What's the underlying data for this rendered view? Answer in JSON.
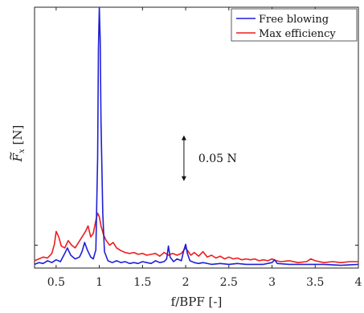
{
  "chart_data": {
    "type": "line",
    "xlabel": "f/BPF [-]",
    "ylabel_main": "F",
    "ylabel_sub": "x",
    "ylabel_unit": "[N]",
    "xlim": [
      0.25,
      4.0
    ],
    "xticks": [
      0.5,
      1,
      1.5,
      2,
      2.5,
      3,
      3.5,
      4
    ],
    "xtick_labels": [
      "0.5",
      "1",
      "1.5",
      "2",
      "2.5",
      "3",
      "3.5",
      "4"
    ],
    "ylim": [
      0,
      0.285
    ],
    "yticks": [
      0.025
    ],
    "grid": false,
    "legend_position": "top-right",
    "annotation": {
      "text": "0.05 N",
      "x": 1.98,
      "y_from": 0.095,
      "y_to": 0.145
    },
    "series": [
      {
        "name": "Free blowing",
        "color": "#1f1fd6",
        "points": [
          [
            0.25,
            0.004
          ],
          [
            0.3,
            0.006
          ],
          [
            0.35,
            0.005
          ],
          [
            0.4,
            0.008
          ],
          [
            0.45,
            0.006
          ],
          [
            0.5,
            0.009
          ],
          [
            0.55,
            0.007
          ],
          [
            0.6,
            0.016
          ],
          [
            0.63,
            0.022
          ],
          [
            0.67,
            0.014
          ],
          [
            0.72,
            0.01
          ],
          [
            0.77,
            0.012
          ],
          [
            0.8,
            0.018
          ],
          [
            0.83,
            0.028
          ],
          [
            0.86,
            0.02
          ],
          [
            0.9,
            0.012
          ],
          [
            0.93,
            0.01
          ],
          [
            0.96,
            0.02
          ],
          [
            0.98,
            0.12
          ],
          [
            0.99,
            0.24
          ],
          [
            1.0,
            0.285
          ],
          [
            1.01,
            0.25
          ],
          [
            1.02,
            0.16
          ],
          [
            1.04,
            0.06
          ],
          [
            1.06,
            0.018
          ],
          [
            1.1,
            0.008
          ],
          [
            1.15,
            0.006
          ],
          [
            1.2,
            0.008
          ],
          [
            1.25,
            0.006
          ],
          [
            1.3,
            0.007
          ],
          [
            1.35,
            0.005
          ],
          [
            1.4,
            0.006
          ],
          [
            1.45,
            0.005
          ],
          [
            1.5,
            0.007
          ],
          [
            1.55,
            0.006
          ],
          [
            1.6,
            0.005
          ],
          [
            1.65,
            0.008
          ],
          [
            1.7,
            0.006
          ],
          [
            1.75,
            0.007
          ],
          [
            1.78,
            0.01
          ],
          [
            1.8,
            0.024
          ],
          [
            1.82,
            0.012
          ],
          [
            1.86,
            0.007
          ],
          [
            1.9,
            0.01
          ],
          [
            1.95,
            0.008
          ],
          [
            1.98,
            0.02
          ],
          [
            2.0,
            0.026
          ],
          [
            2.02,
            0.016
          ],
          [
            2.05,
            0.008
          ],
          [
            2.1,
            0.006
          ],
          [
            2.15,
            0.005
          ],
          [
            2.2,
            0.006
          ],
          [
            2.3,
            0.004
          ],
          [
            2.4,
            0.005
          ],
          [
            2.5,
            0.004
          ],
          [
            2.6,
            0.005
          ],
          [
            2.7,
            0.004
          ],
          [
            2.8,
            0.004
          ],
          [
            2.9,
            0.004
          ],
          [
            3.0,
            0.006
          ],
          [
            3.03,
            0.009
          ],
          [
            3.06,
            0.005
          ],
          [
            3.2,
            0.004
          ],
          [
            3.4,
            0.004
          ],
          [
            3.5,
            0.004
          ],
          [
            3.6,
            0.004
          ],
          [
            3.8,
            0.003
          ],
          [
            4.0,
            0.004
          ]
        ]
      },
      {
        "name": "Max efficiency",
        "color": "#ee1c1c",
        "points": [
          [
            0.25,
            0.008
          ],
          [
            0.3,
            0.01
          ],
          [
            0.35,
            0.012
          ],
          [
            0.4,
            0.011
          ],
          [
            0.45,
            0.016
          ],
          [
            0.48,
            0.026
          ],
          [
            0.5,
            0.04
          ],
          [
            0.53,
            0.034
          ],
          [
            0.56,
            0.024
          ],
          [
            0.6,
            0.022
          ],
          [
            0.64,
            0.03
          ],
          [
            0.68,
            0.025
          ],
          [
            0.72,
            0.022
          ],
          [
            0.76,
            0.028
          ],
          [
            0.8,
            0.034
          ],
          [
            0.84,
            0.04
          ],
          [
            0.87,
            0.046
          ],
          [
            0.9,
            0.034
          ],
          [
            0.93,
            0.038
          ],
          [
            0.96,
            0.052
          ],
          [
            0.98,
            0.06
          ],
          [
            1.0,
            0.056
          ],
          [
            1.02,
            0.046
          ],
          [
            1.05,
            0.036
          ],
          [
            1.08,
            0.03
          ],
          [
            1.12,
            0.025
          ],
          [
            1.16,
            0.028
          ],
          [
            1.2,
            0.022
          ],
          [
            1.25,
            0.019
          ],
          [
            1.3,
            0.017
          ],
          [
            1.35,
            0.016
          ],
          [
            1.4,
            0.017
          ],
          [
            1.45,
            0.015
          ],
          [
            1.5,
            0.016
          ],
          [
            1.55,
            0.014
          ],
          [
            1.6,
            0.015
          ],
          [
            1.65,
            0.016
          ],
          [
            1.7,
            0.013
          ],
          [
            1.75,
            0.017
          ],
          [
            1.8,
            0.014
          ],
          [
            1.85,
            0.016
          ],
          [
            1.9,
            0.014
          ],
          [
            1.95,
            0.016
          ],
          [
            2.0,
            0.022
          ],
          [
            2.03,
            0.018
          ],
          [
            2.06,
            0.014
          ],
          [
            2.1,
            0.017
          ],
          [
            2.15,
            0.013
          ],
          [
            2.2,
            0.018
          ],
          [
            2.25,
            0.012
          ],
          [
            2.3,
            0.014
          ],
          [
            2.35,
            0.011
          ],
          [
            2.4,
            0.013
          ],
          [
            2.45,
            0.01
          ],
          [
            2.5,
            0.012
          ],
          [
            2.55,
            0.01
          ],
          [
            2.6,
            0.011
          ],
          [
            2.65,
            0.009
          ],
          [
            2.7,
            0.01
          ],
          [
            2.75,
            0.009
          ],
          [
            2.8,
            0.01
          ],
          [
            2.85,
            0.008
          ],
          [
            2.9,
            0.009
          ],
          [
            2.95,
            0.008
          ],
          [
            3.0,
            0.01
          ],
          [
            3.05,
            0.008
          ],
          [
            3.1,
            0.007
          ],
          [
            3.2,
            0.008
          ],
          [
            3.3,
            0.006
          ],
          [
            3.4,
            0.007
          ],
          [
            3.45,
            0.01
          ],
          [
            3.5,
            0.008
          ],
          [
            3.6,
            0.006
          ],
          [
            3.7,
            0.007
          ],
          [
            3.8,
            0.006
          ],
          [
            3.9,
            0.007
          ],
          [
            4.0,
            0.007
          ]
        ]
      }
    ]
  }
}
